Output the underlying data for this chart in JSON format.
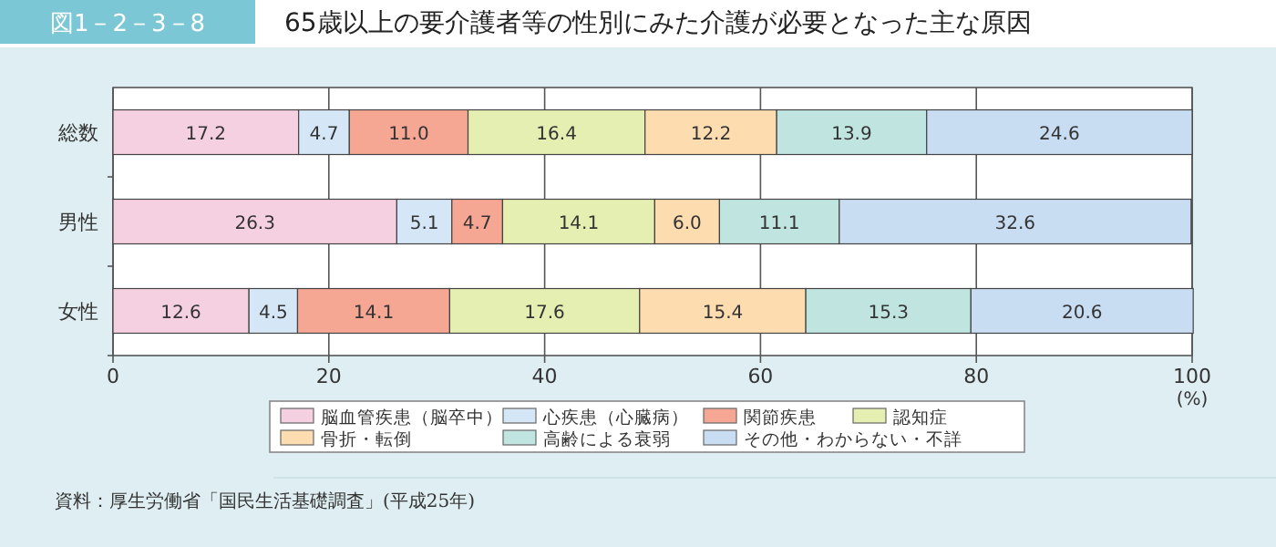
{
  "chart_data": {
    "type": "bar",
    "orientation": "horizontal",
    "stacked": true,
    "title": "65歳以上の要介護者等の性別にみた介護が必要となった主な原因",
    "xlabel": "(%)",
    "annotations": [
      "図1－2－3－8",
      "資料：厚生労働省「国民生活基礎調査」(平成25年)"
    ],
    "categories": [
      "総数",
      "男性",
      "女性"
    ],
    "series": [
      {
        "name": "脳血管疾患（脳卒中）",
        "color": "#f5d0e0",
        "values": [
          17.2,
          26.3,
          12.6
        ],
        "value_labels": [
          "17.2",
          "26.3",
          "12.6"
        ]
      },
      {
        "name": "心疾患（心臓病）",
        "color": "#d5e7f6",
        "values": [
          4.7,
          5.1,
          4.5
        ],
        "value_labels": [
          "4.7",
          "5.1",
          "4.5"
        ]
      },
      {
        "name": "関節疾患",
        "color": "#f5a794",
        "values": [
          11.0,
          4.7,
          14.1
        ],
        "value_labels": [
          "11.0",
          "4.7",
          "14.1"
        ]
      },
      {
        "name": "認知症",
        "color": "#e5efb2",
        "values": [
          16.4,
          14.1,
          17.6
        ],
        "value_labels": [
          "16.4",
          "14.1",
          "17.6"
        ]
      },
      {
        "name": "骨折・転倒",
        "color": "#fddcb0",
        "values": [
          12.2,
          6.0,
          15.4
        ],
        "value_labels": [
          "12.2",
          "6.0",
          "15.4"
        ]
      },
      {
        "name": "高齢による衰弱",
        "color": "#c0e5e0",
        "values": [
          13.9,
          11.1,
          15.3
        ],
        "value_labels": [
          "13.9",
          "11.1",
          "15.3"
        ]
      },
      {
        "name": "その他・わからない・不詳",
        "color": "#c8dcf2",
        "values": [
          24.6,
          32.6,
          20.6
        ],
        "value_labels": [
          "24.6",
          "32.6",
          "20.6"
        ]
      }
    ],
    "xlim": [
      0,
      100
    ],
    "xticks": [
      0,
      20,
      40,
      60,
      80,
      100
    ],
    "grid": "x",
    "legend": "bottom"
  }
}
